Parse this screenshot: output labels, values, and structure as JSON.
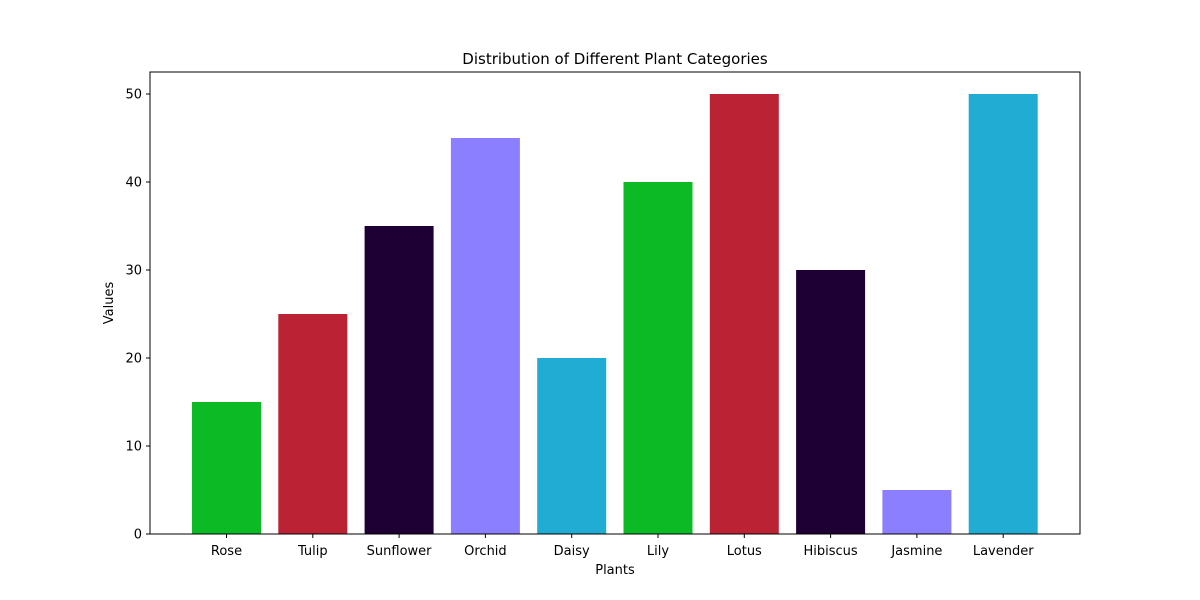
{
  "chart_data": {
    "type": "bar",
    "title": "Distribution of Different Plant Categories",
    "xlabel": "Plants",
    "ylabel": "Values",
    "categories": [
      "Rose",
      "Tulip",
      "Sunflower",
      "Orchid",
      "Daisy",
      "Lily",
      "Lotus",
      "Hibiscus",
      "Jasmine",
      "Lavender"
    ],
    "values": [
      15,
      25,
      35,
      45,
      20,
      40,
      50,
      30,
      5,
      50
    ],
    "colors": [
      "#0cba25",
      "#bb2335",
      "#1e0035",
      "#8c7fff",
      "#21acd3",
      "#0cba25",
      "#bb2335",
      "#1e0035",
      "#8c7fff",
      "#21acd3"
    ],
    "ylim": [
      0,
      52.5
    ],
    "yticks": [
      0,
      10,
      20,
      30,
      40,
      50
    ],
    "grid": false,
    "legend": "none"
  }
}
